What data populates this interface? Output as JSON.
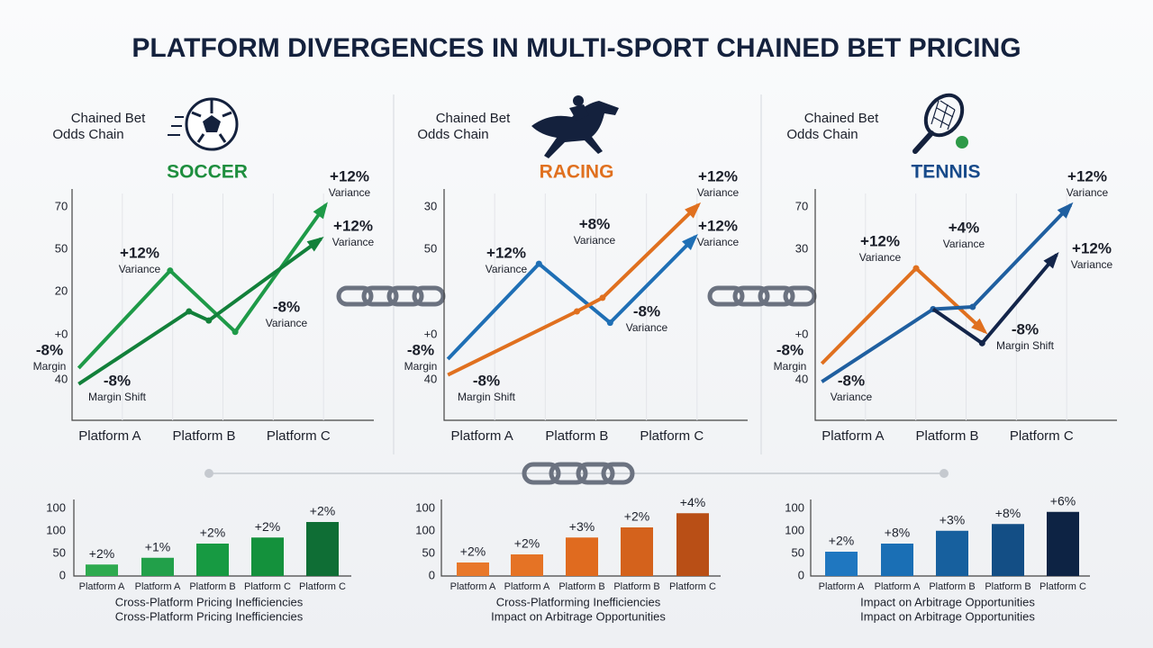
{
  "title": "PLATFORM DIVERGENCES IN MULTI-SPORT CHAINED BET PRICING",
  "chart_data": [
    {
      "type": "line",
      "header": [
        "Chained Bet",
        "Odds Chain"
      ],
      "title": "SOCCER",
      "title_color": "#1e8e3e",
      "axis_labels": [
        "70",
        "50",
        "20",
        "+0",
        "40"
      ],
      "categories": [
        "Platform A",
        "Platform B",
        "Platform C"
      ],
      "xlim": [
        -0.4,
        2.8
      ],
      "ylim": [
        0,
        100
      ],
      "series": [
        {
          "color": "#1e9a48",
          "x": [
            -0.33,
            0.64,
            1.33,
            2.29
          ],
          "values": [
            23,
            66,
            39,
            95
          ]
        },
        {
          "color": "#12803a",
          "x": [
            -0.33,
            0.84,
            1.05,
            2.24
          ],
          "values": [
            16,
            48,
            44,
            80
          ]
        }
      ],
      "annotations": [
        {
          "text": "+12%",
          "note": "Variance"
        },
        {
          "text": "+12%",
          "note": "Variance"
        },
        {
          "text": "+12%",
          "note": "Variance"
        },
        {
          "text": "-8%",
          "note": "Variance"
        },
        {
          "text": "-8%",
          "note": "Margin"
        },
        {
          "text": "-8%",
          "note": "Margin Shift"
        }
      ]
    },
    {
      "type": "line",
      "header": [
        "Chained Bet",
        "Odds Chain"
      ],
      "title": "RACING",
      "title_color": "#e0701f",
      "axis_labels": [
        "30",
        "50",
        "+0",
        "40"
      ],
      "categories": [
        "Platform A",
        "Platform B",
        "Platform C"
      ],
      "xlim": [
        -0.4,
        2.8
      ],
      "ylim": [
        0,
        100
      ],
      "series": [
        {
          "color": "#1f6fb5",
          "x": [
            -0.36,
            0.6,
            1.35,
            2.25
          ],
          "values": [
            27,
            69,
            43,
            81
          ]
        },
        {
          "color": "#e0701f",
          "x": [
            -0.36,
            1.0,
            1.27,
            2.28
          ],
          "values": [
            20,
            48,
            54,
            95
          ]
        }
      ],
      "annotations": [
        {
          "text": "+12%",
          "note": "Variance"
        },
        {
          "text": "+12%",
          "note": "Variance"
        },
        {
          "text": "+8%",
          "note": "Variance"
        },
        {
          "text": "+12%",
          "note": "Variance"
        },
        {
          "text": "-8%",
          "note": "Variance"
        },
        {
          "text": "-8%",
          "note": "Margin"
        },
        {
          "text": "-8%",
          "note": "Margin Shift"
        }
      ]
    },
    {
      "type": "line",
      "header": [
        "Chained Bet",
        "Odds Chain"
      ],
      "title": "TENNIS",
      "title_color": "#174a8a",
      "axis_labels": [
        "70",
        "30",
        "+0",
        "40"
      ],
      "categories": [
        "Platform A",
        "Platform B",
        "Platform C"
      ],
      "xlim": [
        -0.4,
        2.8
      ],
      "ylim": [
        0,
        100
      ],
      "series": [
        {
          "color": "#e0701f",
          "x": [
            -0.33,
            0.67,
            1.4
          ],
          "values": [
            25,
            67,
            39
          ]
        },
        {
          "color": "#1f5fa0",
          "x": [
            -0.33,
            0.85,
            1.27,
            2.31
          ],
          "values": [
            17,
            49,
            50,
            95
          ]
        },
        {
          "color": "#13254a",
          "x": [
            0.85,
            1.37,
            2.16
          ],
          "values": [
            49,
            34,
            73
          ]
        }
      ],
      "annotations": [
        {
          "text": "+12%",
          "note": "Variance"
        },
        {
          "text": "+12%",
          "note": "Variance"
        },
        {
          "text": "+4%",
          "note": "Variance"
        },
        {
          "text": "+12%",
          "note": "Variance"
        },
        {
          "text": "-8%",
          "note": "Margin Shift"
        },
        {
          "text": "-8%",
          "note": "Margin"
        },
        {
          "text": "-8%",
          "note": "Variance"
        }
      ]
    },
    {
      "type": "bar",
      "axis_labels": [
        "100",
        "100",
        "50",
        "0"
      ],
      "ylim": [
        0,
        100
      ],
      "categories": [
        "Platform A",
        "Platform A",
        "Platform B",
        "Platform C",
        "Platform C"
      ],
      "values": [
        17,
        27,
        48,
        57,
        80
      ],
      "colors": [
        "#2eaa4f",
        "#22a04a",
        "#179a42",
        "#14913c",
        "#0f6e35"
      ],
      "bar_labels": [
        "+2%",
        "+1%",
        "+2%",
        "+2%",
        "+2%"
      ],
      "captions": [
        "Cross-Platform Pricing Inefficiencies",
        "Cross-Platform Pricing Inefficiencies"
      ]
    },
    {
      "type": "bar",
      "axis_labels": [
        "100",
        "100",
        "50",
        "0"
      ],
      "ylim": [
        0,
        100
      ],
      "categories": [
        "Platform A",
        "Platform A",
        "Platform B",
        "Platform B",
        "Platform C"
      ],
      "values": [
        20,
        32,
        57,
        72,
        93
      ],
      "colors": [
        "#e8782a",
        "#e57325",
        "#e06b1f",
        "#d4621c",
        "#b94f16"
      ],
      "bar_labels": [
        "+2%",
        "+2%",
        "+3%",
        "+2%",
        "+4%"
      ],
      "captions": [
        "Cross-Platforming Inefficiencies",
        "Impact on Arbitrage Opportunities"
      ]
    },
    {
      "type": "bar",
      "axis_labels": [
        "100",
        "100",
        "50",
        "0"
      ],
      "ylim": [
        0,
        100
      ],
      "categories": [
        "Platform A",
        "Platform A",
        "Platform B",
        "Platform B",
        "Platform C"
      ],
      "values": [
        36,
        48,
        67,
        77,
        95
      ],
      "colors": [
        "#1f77c0",
        "#1a6fb5",
        "#17609e",
        "#134e85",
        "#0d2344"
      ],
      "bar_labels": [
        "+2%",
        "+8%",
        "+3%",
        "+8%",
        "+6%"
      ],
      "captions": [
        "Impact on Arbitrage Opportunities",
        "Impact on Arbitrage Opportunities"
      ]
    }
  ]
}
